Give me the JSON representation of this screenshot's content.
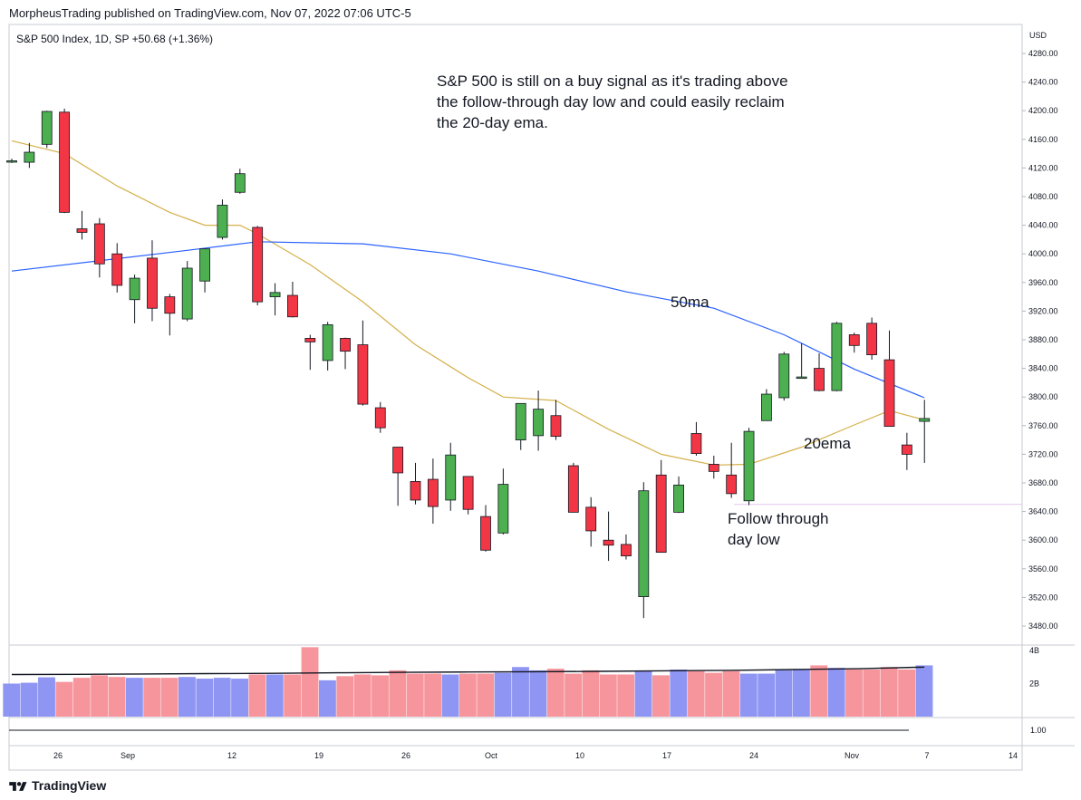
{
  "header": {
    "published": "MorpheusTrading published on TradingView.com, Nov 07, 2022 07:06 UTC-5"
  },
  "legend": {
    "symbol": "S&P 500 Index, 1D, SP",
    "change": "+50.68 (+1.36%)"
  },
  "annotations": {
    "main_note": "S&P 500 is still on a buy signal as it's trading above\nthe follow-through day low and could easily reclaim\nthe 20-day ema.",
    "ma50_label": "50ma",
    "ema20_label": "20ema",
    "ftd_label": "Follow through\nday low"
  },
  "footer": {
    "brand": "TradingView"
  },
  "colors": {
    "up": "#4caf50",
    "down": "#f23645",
    "ma50": "#2962ff",
    "ema20": "#d4b04a",
    "vol_up": "#8f95f2",
    "vol_down": "#f7959c",
    "vol_ma": "#131722",
    "ftd_line": "#e6c6ee"
  },
  "chart_data": {
    "type": "candlestick",
    "currency": "USD",
    "y_axis": {
      "min": 3460,
      "max": 4300,
      "ticks": [
        4280,
        4240,
        4200,
        4160,
        4120,
        4080,
        4040,
        4000,
        3960,
        3920,
        3880,
        3840,
        3800,
        3760,
        3720,
        3680,
        3640,
        3600,
        3560,
        3520,
        3480
      ]
    },
    "x_axis_labels": [
      "26",
      "Sep",
      "12",
      "19",
      "26",
      "Oct",
      "10",
      "17",
      "24",
      "Nov",
      "7",
      "14"
    ],
    "candles": [
      {
        "o": 4130,
        "h": 4133,
        "l": 4127,
        "c": 4130
      },
      {
        "o": 4128,
        "h": 4155,
        "l": 4120,
        "c": 4142
      },
      {
        "o": 4153,
        "h": 4200,
        "l": 4148,
        "c": 4199
      },
      {
        "o": 4198,
        "h": 4203,
        "l": 4057,
        "c": 4058
      },
      {
        "o": 4035,
        "h": 4060,
        "l": 4020,
        "c": 4030
      },
      {
        "o": 4042,
        "h": 4050,
        "l": 3967,
        "c": 3986
      },
      {
        "o": 4000,
        "h": 4015,
        "l": 3946,
        "c": 3956
      },
      {
        "o": 3936,
        "h": 3971,
        "l": 3903,
        "c": 3966
      },
      {
        "o": 3994,
        "h": 4019,
        "l": 3906,
        "c": 3924
      },
      {
        "o": 3940,
        "h": 3944,
        "l": 3886,
        "c": 3917
      },
      {
        "o": 3909,
        "h": 3990,
        "l": 3906,
        "c": 3980
      },
      {
        "o": 3962,
        "h": 4007,
        "l": 3946,
        "c": 4007
      },
      {
        "o": 4023,
        "h": 4076,
        "l": 4020,
        "c": 4068
      },
      {
        "o": 4086,
        "h": 4119,
        "l": 4084,
        "c": 4112
      },
      {
        "o": 4037,
        "h": 4039,
        "l": 3928,
        "c": 3933
      },
      {
        "o": 3940,
        "h": 3959,
        "l": 3914,
        "c": 3946
      },
      {
        "o": 3942,
        "h": 3961,
        "l": 3911,
        "c": 3912
      },
      {
        "o": 3882,
        "h": 3887,
        "l": 3838,
        "c": 3877
      },
      {
        "o": 3851,
        "h": 3905,
        "l": 3837,
        "c": 3901
      },
      {
        "o": 3882,
        "h": 3883,
        "l": 3839,
        "c": 3864
      },
      {
        "o": 3873,
        "h": 3907,
        "l": 3788,
        "c": 3790
      },
      {
        "o": 3785,
        "h": 3793,
        "l": 3750,
        "c": 3757
      },
      {
        "o": 3730,
        "h": 3730,
        "l": 3648,
        "c": 3694
      },
      {
        "o": 3682,
        "h": 3708,
        "l": 3650,
        "c": 3656
      },
      {
        "o": 3685,
        "h": 3714,
        "l": 3623,
        "c": 3647
      },
      {
        "o": 3656,
        "h": 3736,
        "l": 3641,
        "c": 3719
      },
      {
        "o": 3689,
        "h": 3689,
        "l": 3636,
        "c": 3643
      },
      {
        "o": 3633,
        "h": 3649,
        "l": 3584,
        "c": 3586
      },
      {
        "o": 3610,
        "h": 3700,
        "l": 3608,
        "c": 3678
      },
      {
        "o": 3740,
        "h": 3791,
        "l": 3726,
        "c": 3791
      },
      {
        "o": 3746,
        "h": 3809,
        "l": 3725,
        "c": 3783
      },
      {
        "o": 3774,
        "h": 3796,
        "l": 3740,
        "c": 3745
      },
      {
        "o": 3704,
        "h": 3708,
        "l": 3640,
        "c": 3639
      },
      {
        "o": 3646,
        "h": 3660,
        "l": 3591,
        "c": 3613
      },
      {
        "o": 3600,
        "h": 3640,
        "l": 3571,
        "c": 3593
      },
      {
        "o": 3594,
        "h": 3608,
        "l": 3573,
        "c": 3578
      },
      {
        "o": 3521,
        "h": 3681,
        "l": 3491,
        "c": 3669
      },
      {
        "o": 3691,
        "h": 3712,
        "l": 3584,
        "c": 3583
      },
      {
        "o": 3639,
        "h": 3689,
        "l": 3638,
        "c": 3677
      },
      {
        "o": 3749,
        "h": 3765,
        "l": 3718,
        "c": 3721
      },
      {
        "o": 3706,
        "h": 3718,
        "l": 3686,
        "c": 3696
      },
      {
        "o": 3691,
        "h": 3736,
        "l": 3659,
        "c": 3665
      },
      {
        "o": 3655,
        "h": 3757,
        "l": 3649,
        "c": 3752
      },
      {
        "o": 3767,
        "h": 3811,
        "l": 3767,
        "c": 3804
      },
      {
        "o": 3799,
        "h": 3863,
        "l": 3795,
        "c": 3860
      },
      {
        "o": 3826,
        "h": 3875,
        "l": 3826,
        "c": 3828
      },
      {
        "o": 3840,
        "h": 3861,
        "l": 3808,
        "c": 3809
      },
      {
        "o": 3809,
        "h": 3905,
        "l": 3808,
        "c": 3903
      },
      {
        "o": 3887,
        "h": 3890,
        "l": 3862,
        "c": 3872
      },
      {
        "o": 3903,
        "h": 3911,
        "l": 3852,
        "c": 3859
      },
      {
        "o": 3852,
        "h": 3893,
        "l": 3759,
        "c": 3759
      },
      {
        "o": 3733,
        "h": 3750,
        "l": 3698,
        "c": 3720
      },
      {
        "o": 3766,
        "h": 3796,
        "l": 3708,
        "c": 3770
      }
    ],
    "ma50_points": [
      [
        0,
        3976
      ],
      [
        10,
        4005
      ],
      [
        14,
        4017
      ],
      [
        20,
        4014
      ],
      [
        25,
        4000
      ],
      [
        30,
        3976
      ],
      [
        35,
        3947
      ],
      [
        40,
        3924
      ],
      [
        44,
        3887
      ],
      [
        48,
        3839
      ],
      [
        52,
        3799
      ]
    ],
    "ema20_points": [
      [
        0,
        4158
      ],
      [
        3,
        4140
      ],
      [
        6,
        4095
      ],
      [
        9,
        4058
      ],
      [
        11,
        4040
      ],
      [
        13,
        4040
      ],
      [
        14,
        4028
      ],
      [
        17,
        3985
      ],
      [
        20,
        3933
      ],
      [
        23,
        3873
      ],
      [
        26,
        3827
      ],
      [
        28,
        3800
      ],
      [
        31,
        3795
      ],
      [
        34,
        3755
      ],
      [
        37,
        3720
      ],
      [
        40,
        3705
      ],
      [
        42,
        3706
      ],
      [
        45,
        3730
      ],
      [
        48,
        3761
      ],
      [
        50,
        3781
      ],
      [
        52,
        3768
      ]
    ],
    "ftd_low": 3650,
    "volume": {
      "ticks": [
        {
          "label": "4B",
          "value": 4
        },
        {
          "label": "2B",
          "value": 2
        }
      ],
      "max": 4,
      "bars": [
        2.0,
        2.05,
        2.38,
        2.1,
        2.35,
        2.5,
        2.4,
        2.35,
        2.35,
        2.35,
        2.4,
        2.3,
        2.35,
        2.3,
        2.55,
        2.55,
        2.55,
        4.2,
        2.2,
        2.45,
        2.55,
        2.5,
        2.8,
        2.6,
        2.6,
        2.55,
        2.6,
        2.6,
        2.65,
        3.0,
        2.8,
        2.9,
        2.6,
        2.8,
        2.55,
        2.55,
        2.75,
        2.5,
        2.85,
        2.75,
        2.65,
        2.75,
        2.6,
        2.6,
        2.8,
        2.85,
        3.1,
        2.95,
        2.85,
        2.85,
        3.0,
        2.85,
        3.1
      ],
      "ma": [
        2.55,
        2.56,
        2.58,
        2.6,
        2.62,
        2.65,
        2.68,
        2.7,
        2.72,
        2.74,
        2.77,
        2.8,
        2.85,
        2.9,
        3.0
      ],
      "ratio_tick": "1.00"
    }
  }
}
